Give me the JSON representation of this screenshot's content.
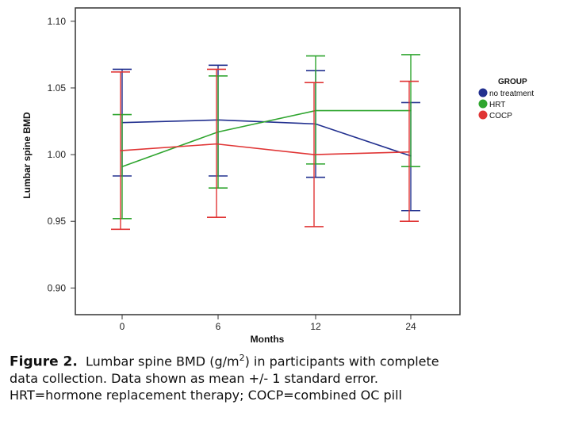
{
  "chart_data": {
    "type": "line",
    "title": "",
    "xlabel": "Months",
    "ylabel": "Lumbar spine BMD",
    "categories": [
      "0",
      "6",
      "12",
      "24"
    ],
    "ylim": [
      0.88,
      1.11
    ],
    "yticks": [
      "0.90",
      "0.95",
      "1.00",
      "1.05",
      "1.10"
    ],
    "ytick_values": [
      0.9,
      0.95,
      1.0,
      1.05,
      1.1
    ],
    "legend_title": "GROUP",
    "legend_position": "right",
    "series": [
      {
        "name": "no treatment",
        "color": "#22308f",
        "values": [
          1.024,
          1.026,
          1.023,
          0.999
        ],
        "upper": [
          1.064,
          1.067,
          1.063,
          1.039
        ],
        "lower": [
          0.984,
          0.984,
          0.983,
          0.958
        ]
      },
      {
        "name": "HRT",
        "color": "#2fa52f",
        "values": [
          0.991,
          1.017,
          1.033,
          1.033
        ],
        "upper": [
          1.03,
          1.059,
          1.074,
          1.075
        ],
        "lower": [
          0.952,
          0.975,
          0.993,
          0.991
        ]
      },
      {
        "name": "COCP",
        "color": "#e03535",
        "values": [
          1.003,
          1.008,
          1.0,
          1.002
        ],
        "upper": [
          1.062,
          1.064,
          1.054,
          1.055
        ],
        "lower": [
          0.944,
          0.953,
          0.946,
          0.95
        ]
      }
    ]
  },
  "caption": {
    "label": "Figure 2.",
    "line1_a": "Lumbar spine BMD (g/m",
    "line1_sup": "2",
    "line1_b": ") in participants with complete",
    "line2": "data collection. Data shown as mean +/- 1 standard error.",
    "line3": "HRT=hormone replacement therapy; COCP=combined OC pill"
  }
}
